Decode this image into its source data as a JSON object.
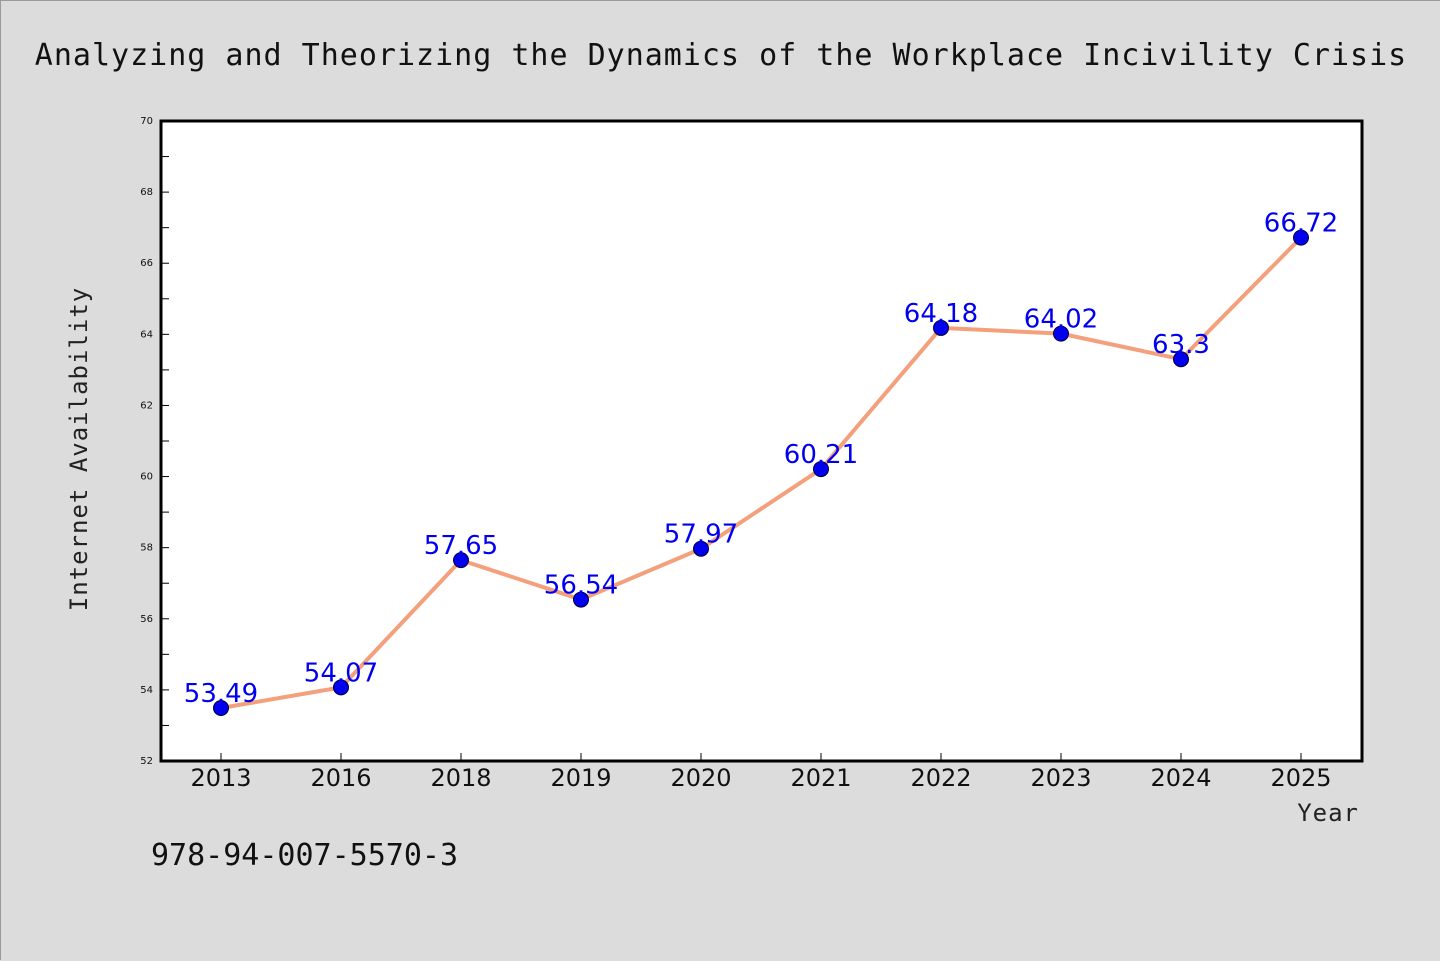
{
  "colors": {
    "background": "#dcdcdc",
    "plot_background": "#ffffff",
    "line": "#f4a07c",
    "marker": "#0000ee",
    "data_label": "#0000ee"
  },
  "footer": {
    "isbn": "978-94-007-5570-3"
  },
  "chart_data": {
    "type": "line",
    "title": "Analyzing and Theorizing the Dynamics of the Workplace Incivility Crisis",
    "xlabel": "Year",
    "ylabel": "Internet Availability",
    "categories": [
      "2013",
      "2016",
      "2018",
      "2019",
      "2020",
      "2021",
      "2022",
      "2023",
      "2024",
      "2025"
    ],
    "series": [
      {
        "values": [
          53.49,
          54.07,
          57.65,
          56.54,
          57.97,
          60.21,
          64.18,
          64.02,
          63.3,
          66.72
        ],
        "labels": [
          "53.49",
          "54.07",
          "57.65",
          "56.54",
          "57.97",
          "60.21",
          "64.18",
          "64.02",
          "63.3",
          "66.72"
        ]
      }
    ],
    "ylim": [
      52,
      70
    ],
    "yticks": [
      52,
      54,
      56,
      58,
      60,
      62,
      64,
      66,
      68,
      70
    ],
    "grid": false,
    "legend": "none"
  }
}
